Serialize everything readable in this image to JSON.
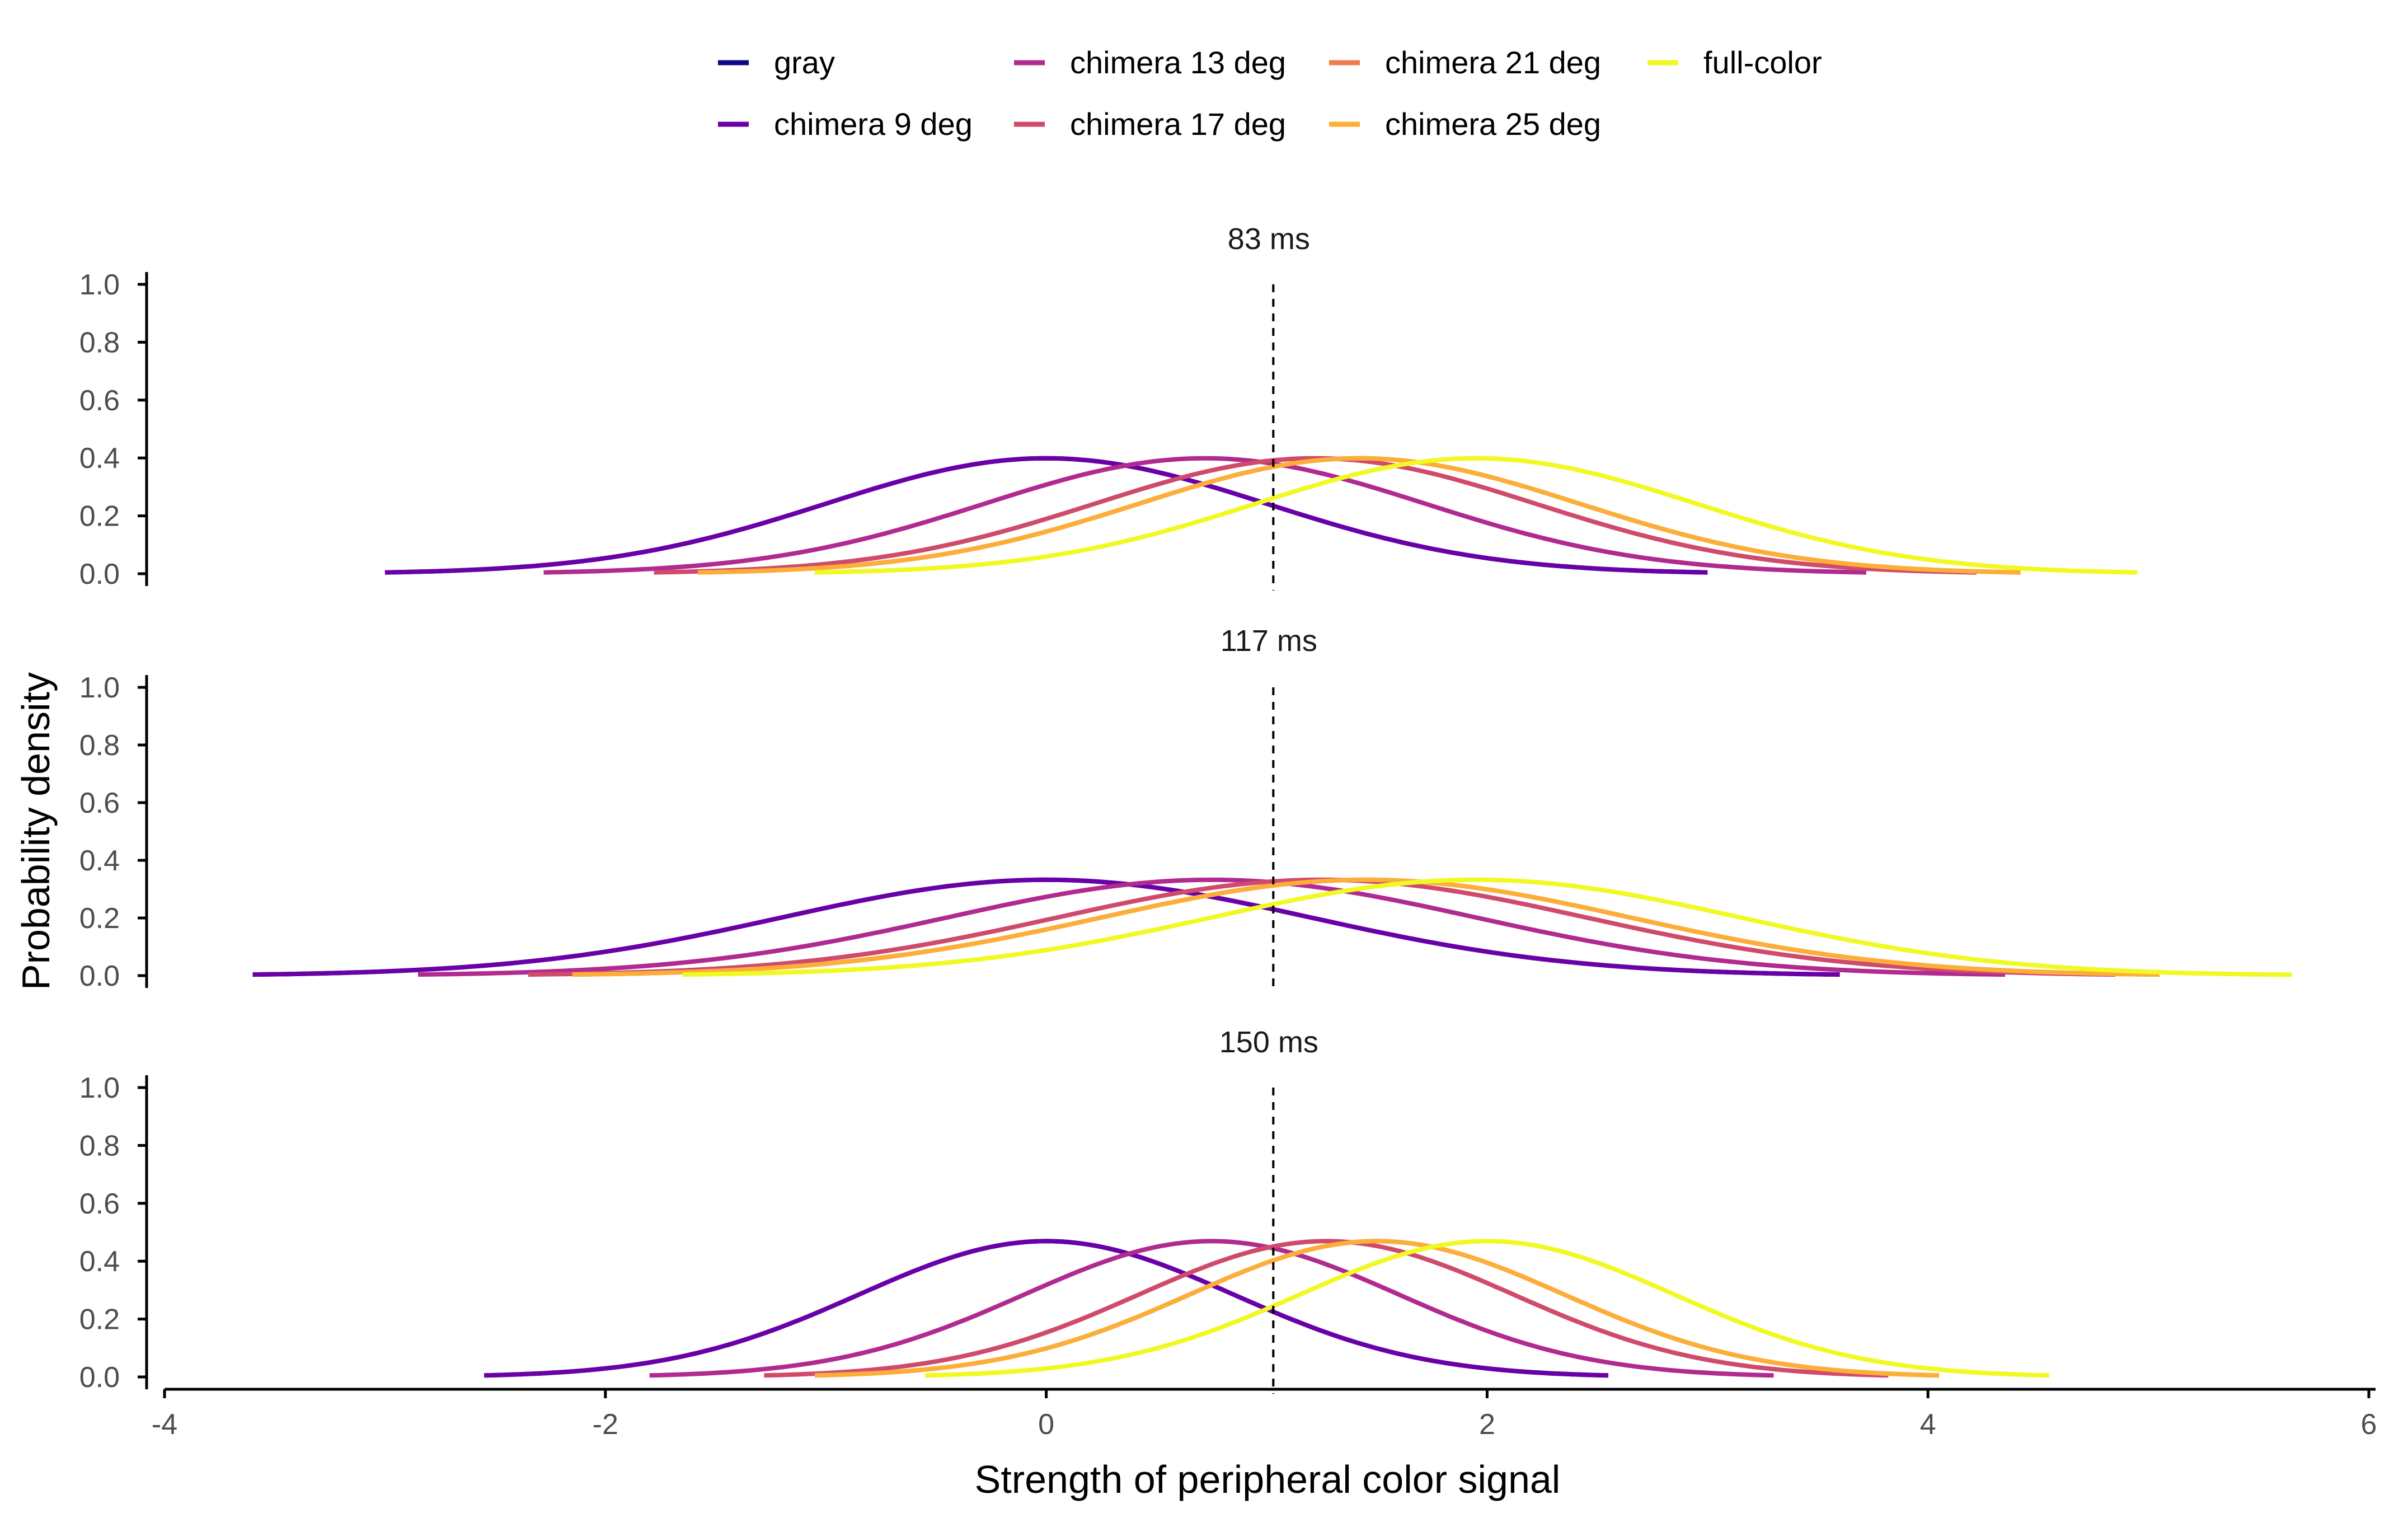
{
  "chart_data": {
    "type": "line",
    "subtype": "gaussian density curves (faceted)",
    "xlabel": "Strength of peripheral color signal",
    "ylabel": "Probability density",
    "xlim": [
      -4,
      6
    ],
    "x_ticks": [
      "-4",
      "-2",
      "0",
      "2",
      "4",
      "6"
    ],
    "x_tick_values": [
      -4,
      -2,
      0,
      2,
      4,
      6
    ],
    "ylim": [
      0,
      1
    ],
    "y_ticks": [
      "0.0",
      "0.2",
      "0.4",
      "0.6",
      "0.8",
      "1.0"
    ],
    "y_tick_values": [
      0,
      0.2,
      0.4,
      0.6,
      0.8,
      1.0
    ],
    "grid": false,
    "legend_position": "top",
    "reference_line": {
      "x": 1.03,
      "style": "dashed",
      "color": "#000000"
    },
    "legend": [
      {
        "name": "gray",
        "color": "#0d0887"
      },
      {
        "name": "chimera 9 deg",
        "color": "#6a00a8"
      },
      {
        "name": "chimera 13 deg",
        "color": "#b12a90"
      },
      {
        "name": "chimera 17 deg",
        "color": "#d04a6c"
      },
      {
        "name": "chimera 21 deg",
        "color": "#ef7b50"
      },
      {
        "name": "chimera 25 deg",
        "color": "#fcae38"
      },
      {
        "name": "full-color",
        "color": "#f0f921"
      }
    ],
    "panels": [
      {
        "title": "83 ms",
        "sd": 1.0,
        "series": [
          {
            "name": "gray",
            "color": "#0d0887",
            "mean": 0.0,
            "x_range": [
              -3.0,
              3.0
            ]
          },
          {
            "name": "chimera 9 deg",
            "color": "#6a00a8",
            "mean": 0.0,
            "x_range": [
              -3.0,
              3.0
            ]
          },
          {
            "name": "chimera 13 deg",
            "color": "#b12a90",
            "mean": 0.72,
            "x_range": [
              -2.28,
              3.72
            ]
          },
          {
            "name": "chimera 17 deg",
            "color": "#d04a6c",
            "mean": 1.22,
            "x_range": [
              -1.78,
              4.22
            ]
          },
          {
            "name": "chimera 21 deg",
            "color": "#ef7b50",
            "mean": 1.42,
            "x_range": [
              -1.58,
              4.42
            ]
          },
          {
            "name": "chimera 25 deg",
            "color": "#fcae38",
            "mean": 1.42,
            "x_range": [
              -1.58,
              4.42
            ]
          },
          {
            "name": "full-color",
            "color": "#f0f921",
            "mean": 1.95,
            "x_range": [
              -1.05,
              4.95
            ]
          }
        ]
      },
      {
        "title": "117 ms",
        "sd": 1.2,
        "series": [
          {
            "name": "gray",
            "color": "#0d0887",
            "mean": 0.0,
            "x_range": [
              -3.6,
              3.6
            ]
          },
          {
            "name": "chimera 9 deg",
            "color": "#6a00a8",
            "mean": 0.0,
            "x_range": [
              -3.6,
              3.6
            ]
          },
          {
            "name": "chimera 13 deg",
            "color": "#b12a90",
            "mean": 0.75,
            "x_range": [
              -2.85,
              4.35
            ]
          },
          {
            "name": "chimera 17 deg",
            "color": "#d04a6c",
            "mean": 1.25,
            "x_range": [
              -2.35,
              4.85
            ]
          },
          {
            "name": "chimera 21 deg",
            "color": "#ef7b50",
            "mean": 1.45,
            "x_range": [
              -2.15,
              5.05
            ]
          },
          {
            "name": "chimera 25 deg",
            "color": "#fcae38",
            "mean": 1.45,
            "x_range": [
              -2.15,
              5.05
            ]
          },
          {
            "name": "full-color",
            "color": "#f0f921",
            "mean": 1.95,
            "x_range": [
              -1.65,
              5.65
            ]
          }
        ]
      },
      {
        "title": "150 ms",
        "sd": 0.85,
        "series": [
          {
            "name": "gray",
            "color": "#0d0887",
            "mean": 0.0,
            "x_range": [
              -2.55,
              2.55
            ]
          },
          {
            "name": "chimera 9 deg",
            "color": "#6a00a8",
            "mean": 0.0,
            "x_range": [
              -2.55,
              2.55
            ]
          },
          {
            "name": "chimera 13 deg",
            "color": "#b12a90",
            "mean": 0.75,
            "x_range": [
              -1.8,
              3.3
            ]
          },
          {
            "name": "chimera 17 deg",
            "color": "#d04a6c",
            "mean": 1.27,
            "x_range": [
              -1.28,
              3.82
            ]
          },
          {
            "name": "chimera 21 deg",
            "color": "#ef7b50",
            "mean": 1.5,
            "x_range": [
              -1.05,
              4.05
            ]
          },
          {
            "name": "chimera 25 deg",
            "color": "#fcae38",
            "mean": 1.5,
            "x_range": [
              -1.05,
              4.05
            ]
          },
          {
            "name": "full-color",
            "color": "#f0f921",
            "mean": 2.0,
            "x_range": [
              -0.55,
              4.55
            ]
          }
        ]
      }
    ]
  }
}
